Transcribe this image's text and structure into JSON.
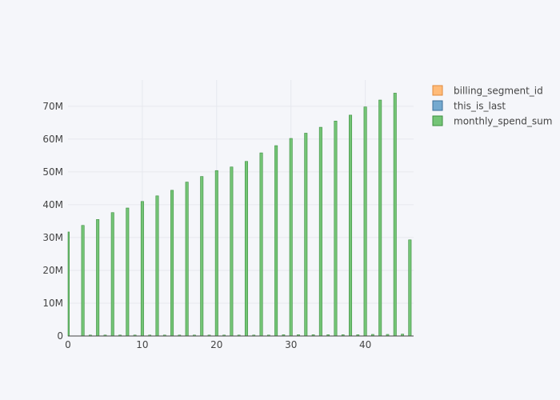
{
  "chart_data": {
    "type": "bar",
    "x": [
      0,
      2,
      4,
      6,
      8,
      10,
      12,
      14,
      16,
      18,
      20,
      22,
      24,
      26,
      28,
      30,
      32,
      34,
      36,
      38,
      40,
      42,
      44,
      46
    ],
    "series": [
      {
        "name": "billing_segment_id",
        "color": "#ffbb78",
        "values": [
          0,
          0,
          0,
          0,
          0,
          0,
          0,
          0,
          0,
          0,
          0,
          0,
          0,
          0,
          0,
          0,
          0,
          0,
          0,
          0,
          0,
          0,
          0,
          0
        ]
      },
      {
        "name": "this_is_last",
        "color": "#74a9cf",
        "values": [
          0,
          0,
          0,
          0,
          0,
          0,
          0,
          0,
          0,
          0,
          0,
          0,
          0,
          0,
          0,
          0,
          0,
          0,
          0,
          0,
          0,
          0,
          0,
          0
        ]
      },
      {
        "name": "monthly_spend_sum",
        "color": "#74c476",
        "values": [
          31700000,
          33700000,
          35500000,
          37600000,
          39000000,
          41000000,
          42700000,
          44400000,
          46900000,
          48600000,
          50400000,
          51500000,
          53200000,
          55800000,
          58000000,
          60200000,
          61800000,
          63600000,
          65500000,
          67300000,
          69800000,
          71900000,
          74000000,
          29300000
        ]
      }
    ],
    "small_bars": [
      {
        "x": 3,
        "value": 300000
      },
      {
        "x": 5,
        "value": 300000
      },
      {
        "x": 7,
        "value": 300000
      },
      {
        "x": 9,
        "value": 300000
      },
      {
        "x": 11,
        "value": 300000
      },
      {
        "x": 13,
        "value": 300000
      },
      {
        "x": 15,
        "value": 300000
      },
      {
        "x": 17,
        "value": 300000
      },
      {
        "x": 19,
        "value": 300000
      },
      {
        "x": 21,
        "value": 300000
      },
      {
        "x": 23,
        "value": 300000
      },
      {
        "x": 25,
        "value": 300000
      },
      {
        "x": 27,
        "value": 300000
      },
      {
        "x": 29,
        "value": 400000
      },
      {
        "x": 31,
        "value": 400000
      },
      {
        "x": 33,
        "value": 400000
      },
      {
        "x": 35,
        "value": 400000
      },
      {
        "x": 37,
        "value": 400000
      },
      {
        "x": 39,
        "value": 400000
      },
      {
        "x": 41,
        "value": 500000
      },
      {
        "x": 43,
        "value": 500000
      },
      {
        "x": 45,
        "value": 600000
      }
    ],
    "xlim": [
      0,
      46.5
    ],
    "ylim": [
      0,
      78000000
    ],
    "x_ticks": [
      0,
      10,
      20,
      30,
      40
    ],
    "y_ticks": [
      0,
      10000000,
      20000000,
      30000000,
      40000000,
      50000000,
      60000000,
      70000000
    ],
    "y_tick_labels": [
      "0",
      "10M",
      "20M",
      "30M",
      "40M",
      "50M",
      "60M",
      "70M"
    ],
    "title": "",
    "xlabel": "",
    "ylabel": "",
    "grid": true,
    "legend_position": "top-right"
  }
}
